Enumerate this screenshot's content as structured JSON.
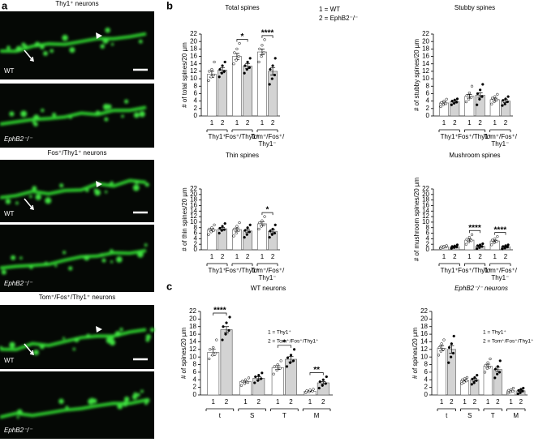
{
  "panel_labels": [
    "a",
    "b",
    "c"
  ],
  "images": [
    {
      "title": "Thy1⁺ neurons",
      "labels": [
        "WT",
        "EphB2⁻/⁻"
      ]
    },
    {
      "title": "Fos⁺/Thy1⁺ neurons",
      "labels": [
        "WT",
        "EphB2⁻/⁻"
      ]
    },
    {
      "title": "Tom⁺/Fos⁺/Thy1⁺ neurons",
      "labels": [
        "WT",
        "EphB2⁻/⁻"
      ]
    }
  ],
  "chart_data": [
    {
      "type": "bar",
      "title": "Total spines",
      "ylabel": "# of total spines/20 µm",
      "ylim": [
        0,
        22
      ],
      "yticks": [
        0,
        2,
        4,
        6,
        8,
        10,
        12,
        14,
        16,
        18,
        20,
        22
      ],
      "categories": [
        "1",
        "2",
        "1",
        "2",
        "1",
        "2"
      ],
      "groups": [
        [
          "Thy1⁺"
        ],
        [
          "Fos⁺/Thy1⁺"
        ],
        [
          "Tom⁺/Fos⁺/",
          "Thy1⁻"
        ]
      ],
      "values": [
        11.2,
        12.3,
        16.0,
        13.4,
        17.2,
        12.0
      ],
      "errors": [
        0.8,
        0.7,
        0.8,
        0.7,
        0.8,
        1.0
      ],
      "points": [
        [
          9.5,
          10.5,
          11,
          12,
          12.5,
          14.5
        ],
        [
          10.5,
          11.5,
          12,
          12.5,
          13.5,
          14.5
        ],
        [
          14,
          15,
          16,
          17,
          18,
          19.5
        ],
        [
          11.5,
          12.5,
          13,
          13.5,
          14.5,
          15.5
        ],
        [
          14.5,
          16,
          17,
          18,
          19,
          20.5
        ],
        [
          8.5,
          10,
          11,
          12.5,
          13.5,
          15.5
        ]
      ],
      "colors": [
        "#ffffff",
        "#d3d3d3"
      ],
      "point_colors": [
        "#ffffff",
        "#000000"
      ],
      "significance": [
        {
          "bars": [
            2,
            3
          ],
          "label": "*"
        },
        {
          "bars": [
            4,
            5
          ],
          "label": "****"
        }
      ],
      "legend": [
        "1 = WT",
        "2 = EphB2⁻/⁻"
      ]
    },
    {
      "type": "bar",
      "title": "Stubby spines",
      "ylabel": "# of stubby spines/20 µm",
      "ylim": [
        0,
        22
      ],
      "yticks": [
        0,
        2,
        4,
        6,
        8,
        10,
        12,
        14,
        16,
        18,
        20,
        22
      ],
      "categories": [
        "1",
        "2",
        "1",
        "2",
        "1",
        "2"
      ],
      "groups": [
        [
          "Thy1⁺"
        ],
        [
          "Fos⁺/Thy1⁺"
        ],
        [
          "Tom⁺/Fos⁺/",
          "Thy1⁻"
        ]
      ],
      "values": [
        3.5,
        3.8,
        5.3,
        5.6,
        4.4,
        4.0
      ],
      "errors": [
        0.3,
        0.3,
        0.5,
        0.6,
        0.4,
        0.4
      ],
      "points": [
        [
          2.5,
          3,
          3.3,
          3.6,
          4,
          4.5
        ],
        [
          3,
          3.4,
          3.7,
          4,
          4.3,
          4.6
        ],
        [
          3.8,
          4.5,
          5,
          5.5,
          6.2,
          8
        ],
        [
          3,
          4.5,
          5.2,
          6,
          7,
          8.5
        ],
        [
          3.2,
          3.8,
          4.3,
          4.8,
          5.2,
          5.8
        ],
        [
          2.8,
          3.2,
          3.8,
          4.2,
          4.6,
          5.2
        ]
      ],
      "colors": [
        "#ffffff",
        "#d3d3d3"
      ],
      "point_colors": [
        "#ffffff",
        "#000000"
      ],
      "significance": []
    },
    {
      "type": "bar",
      "title": "Thin spines",
      "ylabel": "# of thin spines/20 µm",
      "ylim": [
        0,
        22
      ],
      "yticks": [
        0,
        2,
        4,
        6,
        8,
        10,
        12,
        14,
        16,
        18,
        20,
        22
      ],
      "categories": [
        "1",
        "2",
        "1",
        "2",
        "1",
        "2"
      ],
      "groups": [
        [
          "Thy1⁺"
        ],
        [
          "Fos⁺/Thy1⁺"
        ],
        [
          "Tom⁺/Fos⁺/",
          "Thy1⁻"
        ]
      ],
      "values": [
        7.2,
        7.6,
        7.3,
        6.8,
        9.4,
        6.7
      ],
      "errors": [
        0.5,
        0.5,
        0.6,
        0.6,
        0.7,
        0.6
      ],
      "points": [
        [
          5.5,
          6.5,
          7,
          7.5,
          8,
          9
        ],
        [
          6,
          7,
          7.3,
          7.8,
          8.5,
          9.5
        ],
        [
          5,
          6,
          7,
          7.5,
          8.5,
          9.8
        ],
        [
          4.5,
          5.5,
          6.5,
          7,
          8,
          9
        ],
        [
          7.5,
          8.5,
          9,
          9.8,
          10.5,
          12
        ],
        [
          4.5,
          5.5,
          6,
          6.8,
          7.5,
          9
        ]
      ],
      "colors": [
        "#ffffff",
        "#d3d3d3"
      ],
      "point_colors": [
        "#ffffff",
        "#000000"
      ],
      "significance": [
        {
          "bars": [
            4,
            5
          ],
          "label": "*"
        }
      ]
    },
    {
      "type": "bar",
      "title": "Mushroom spines",
      "ylabel": "# of mushroom spines/20 µm",
      "ylim": [
        0,
        22
      ],
      "yticks": [
        0,
        2,
        4,
        6,
        8,
        10,
        12,
        14,
        16,
        18,
        20,
        22
      ],
      "categories": [
        "1",
        "2",
        "1",
        "2",
        "1",
        "2"
      ],
      "groups": [
        [
          "Thy1⁺"
        ],
        [
          "Fos⁺/Thy1⁺"
        ],
        [
          "Tom⁺/Fos⁺/",
          "Thy1⁻"
        ]
      ],
      "values": [
        1.0,
        1.1,
        3.5,
        1.3,
        3.2,
        1.1
      ],
      "errors": [
        0.1,
        0.1,
        0.4,
        0.2,
        0.3,
        0.2
      ],
      "points": [
        [
          0.6,
          0.8,
          1,
          1.1,
          1.3,
          1.5
        ],
        [
          0.5,
          0.8,
          1,
          1.2,
          1.4,
          1.8
        ],
        [
          2,
          2.8,
          3.3,
          3.8,
          4.5,
          5.5
        ],
        [
          0.4,
          0.8,
          1.2,
          1.5,
          1.8,
          2.2
        ],
        [
          1.8,
          2.5,
          3,
          3.5,
          4,
          4.8
        ],
        [
          0.3,
          0.6,
          1,
          1.2,
          1.5,
          1.8
        ]
      ],
      "colors": [
        "#ffffff",
        "#d3d3d3"
      ],
      "point_colors": [
        "#ffffff",
        "#000000"
      ],
      "significance": [
        {
          "bars": [
            2,
            3
          ],
          "label": "****"
        },
        {
          "bars": [
            4,
            5
          ],
          "label": "****"
        }
      ]
    },
    {
      "type": "bar",
      "title": "WT neurons",
      "ylabel": "# of spines/20 µm",
      "ylim": [
        0,
        22
      ],
      "yticks": [
        0,
        2,
        4,
        6,
        8,
        10,
        12,
        14,
        16,
        18,
        20,
        22
      ],
      "categories": [
        "1",
        "2",
        "1",
        "2",
        "1",
        "2",
        "1",
        "2"
      ],
      "groups": [
        [
          "t"
        ],
        [
          "S"
        ],
        [
          "T"
        ],
        [
          "M"
        ]
      ],
      "values": [
        11.2,
        17.2,
        3.5,
        4.4,
        7.2,
        9.4,
        1.0,
        3.2
      ],
      "errors": [
        0.8,
        0.8,
        0.3,
        0.4,
        0.5,
        0.7,
        0.1,
        0.3
      ],
      "points": [
        [
          9.5,
          10.5,
          11,
          12,
          12.5,
          14.5
        ],
        [
          14.5,
          16,
          17,
          18,
          19,
          20.5
        ],
        [
          2.5,
          3,
          3.3,
          3.6,
          4,
          4.5
        ],
        [
          3.2,
          3.8,
          4.3,
          4.8,
          5.2,
          5.8
        ],
        [
          5.5,
          6.5,
          7,
          7.5,
          8,
          9
        ],
        [
          7.5,
          8.5,
          9,
          9.8,
          10.5,
          12
        ],
        [
          0.6,
          0.8,
          1,
          1.1,
          1.3,
          1.5
        ],
        [
          1.8,
          2.5,
          3,
          3.5,
          4,
          4.8
        ]
      ],
      "colors": [
        "#ffffff",
        "#d3d3d3"
      ],
      "point_colors": [
        "#ffffff",
        "#000000"
      ],
      "significance": [
        {
          "bars": [
            0,
            1
          ],
          "label": "****"
        },
        {
          "bars": [
            4,
            5
          ],
          "label": "*"
        },
        {
          "bars": [
            6,
            7
          ],
          "label": "**"
        }
      ],
      "legend": [
        "1 = Thy1⁺",
        "2 = Tom⁺/Fos⁺/Thy1⁺"
      ]
    },
    {
      "type": "bar",
      "title": "EphB2⁻/⁻ neurons",
      "ylabel": "# of spines/20 µm",
      "ylim": [
        0,
        22
      ],
      "yticks": [
        0,
        2,
        4,
        6,
        8,
        10,
        12,
        14,
        16,
        18,
        20,
        22
      ],
      "categories": [
        "1",
        "2",
        "1",
        "2",
        "1",
        "2",
        "1",
        "2"
      ],
      "groups": [
        [
          "t"
        ],
        [
          "S"
        ],
        [
          "T"
        ],
        [
          "M"
        ]
      ],
      "values": [
        12.3,
        12.0,
        3.8,
        4.0,
        7.6,
        6.7,
        1.1,
        1.1
      ],
      "errors": [
        0.7,
        1.0,
        0.3,
        0.4,
        0.5,
        0.6,
        0.1,
        0.2
      ],
      "points": [
        [
          10.5,
          11.5,
          12,
          12.5,
          13.5,
          14.5
        ],
        [
          8.5,
          10,
          11,
          12.5,
          13.5,
          15.5
        ],
        [
          3,
          3.4,
          3.7,
          4,
          4.3,
          4.6
        ],
        [
          2.8,
          3.2,
          3.8,
          4.2,
          4.6,
          5.2
        ],
        [
          6,
          7,
          7.3,
          7.8,
          8.5,
          9.5
        ],
        [
          4.5,
          5.5,
          6,
          6.8,
          7.5,
          9
        ],
        [
          0.5,
          0.8,
          1,
          1.2,
          1.4,
          1.8
        ],
        [
          0.3,
          0.6,
          1,
          1.2,
          1.5,
          1.8
        ]
      ],
      "colors": [
        "#ffffff",
        "#d3d3d3"
      ],
      "point_colors": [
        "#ffffff",
        "#000000"
      ],
      "significance": [],
      "legend": [
        "1 = Thy1⁺",
        "2 = Tom⁺/Fos⁺/Thy1⁺"
      ]
    }
  ]
}
